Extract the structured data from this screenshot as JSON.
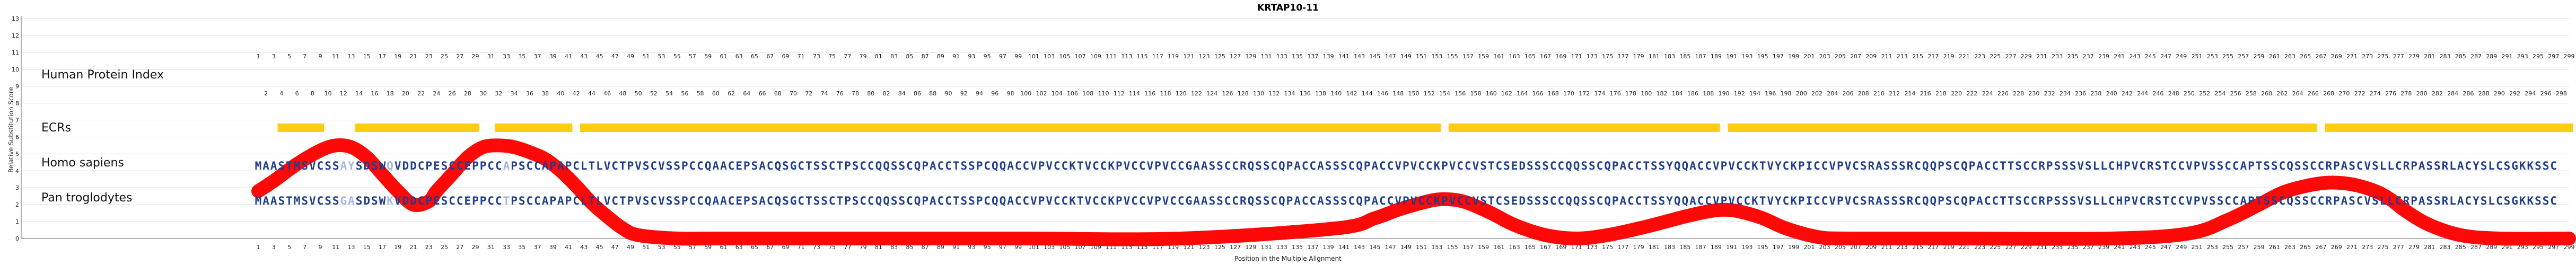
{
  "chart_data": {
    "type": "line",
    "title": "KRTAP10-11",
    "xlabel": "Position in the Multiple Alignment",
    "ylabel": "Relative Substitution Score",
    "xlim": [
      1,
      299
    ],
    "ylim": [
      0,
      13
    ],
    "yticks": [
      0,
      1,
      2,
      3,
      4,
      5,
      6,
      7,
      8,
      9,
      10,
      11,
      12,
      13
    ],
    "human_index_label": "Human Protein Index",
    "ecrs_label": "ECRs",
    "ecrs": [
      [
        4,
        9
      ],
      [
        14,
        29
      ],
      [
        32,
        41
      ],
      [
        43,
        153
      ],
      [
        155,
        189
      ],
      [
        191,
        266
      ],
      [
        268,
        299
      ]
    ],
    "sequences": [
      {
        "name": "Homo sapiens",
        "seq": "MAASTMSVCSSAYSDSWQVDDCPESCCEPPCCAPSCCAPAPCLTLVCTPVSCVSSPCCQAACEPSACQSGCTSSCTPSCCQQSSCQPACCTSSPCQQACCVPVCCKTVCCKPVCCVPVCCGAASSCCRQSSCQPACCASSSCQPACCVPVCCKPVCCVSTCSEDSSSCCQQSSCQPACCTSSYQQACCVPVCCKTVYCKPICCVPVCSRASSSRCQQPSCQPACCTTSCCRPSSSVSLLCHPVCRSTCCVPVSSCCAPTSSCQSSCCRPASCVSLLCRPASSRLACYSLCSGKKSSC"
      },
      {
        "name": "Pan troglodytes",
        "seq": "MAASTMSVCSSGASDSWKVDDCPESCCEPPCCTPSCCAPAPCLTLVCTPVSCVSSPCCQAACEPSACQSGCTSSCTPSCCQQSSCQPACCTSSPCQQACCVPVCCKTVCCKPVCCVPVCCGAASSCCRQSSCQPACCASSSCQPACCVPVCCKPVCCVSTCSEDSSSCCQQSSCQPACCTSSYQQACCVPVCCKTVYCKPICCVPVCSRASSSRCQQPSCQPACCTTSCCRPSSSVSLLCHPVCRSTCCVPVSSCCAPTSSCQSSCCRPASCVSLLCRPASSRLACYSLCSGKKSSC"
      }
    ],
    "series": [
      {
        "x": [
          1,
          3,
          6,
          9,
          11,
          13,
          15,
          17,
          19,
          21,
          23,
          24,
          26,
          28,
          30,
          32,
          34,
          36,
          38,
          40,
          42,
          44,
          46,
          48,
          50,
          55,
          60,
          80,
          100,
          120,
          140,
          145,
          148,
          151,
          153,
          155,
          157,
          160,
          163,
          167,
          171,
          175,
          180,
          185,
          188,
          190,
          192,
          195,
          198,
          202,
          206,
          220,
          240,
          250,
          255,
          259,
          262,
          265,
          268,
          271,
          274,
          276,
          278,
          281,
          285,
          290,
          299
        ],
        "y": [
          2.8,
          3.4,
          4.4,
          5.2,
          5.5,
          5.4,
          4.8,
          3.8,
          2.8,
          2.0,
          2.2,
          2.8,
          3.8,
          4.8,
          5.4,
          5.5,
          5.4,
          5.1,
          4.7,
          4.0,
          3.1,
          2.1,
          1.3,
          0.6,
          0.2,
          0.0,
          0.0,
          0.0,
          0.0,
          0.0,
          0.6,
          1.2,
          1.7,
          2.1,
          2.3,
          2.3,
          2.1,
          1.5,
          0.8,
          0.2,
          0.0,
          0.2,
          0.7,
          1.3,
          1.6,
          1.7,
          1.6,
          1.2,
          0.6,
          0.1,
          0.0,
          0.0,
          0.0,
          0.3,
          1.1,
          2.0,
          2.7,
          3.1,
          3.3,
          3.2,
          2.8,
          2.3,
          1.6,
          0.8,
          0.2,
          0.0,
          0.0
        ],
        "color": "#ff0000"
      }
    ],
    "colors": {
      "ecr": "#ffcc11",
      "seq_conserved": "#1f3d8a",
      "seq_variant": "#a6b4e8",
      "curve": "#ff0000",
      "grid": "#dddddd"
    }
  }
}
